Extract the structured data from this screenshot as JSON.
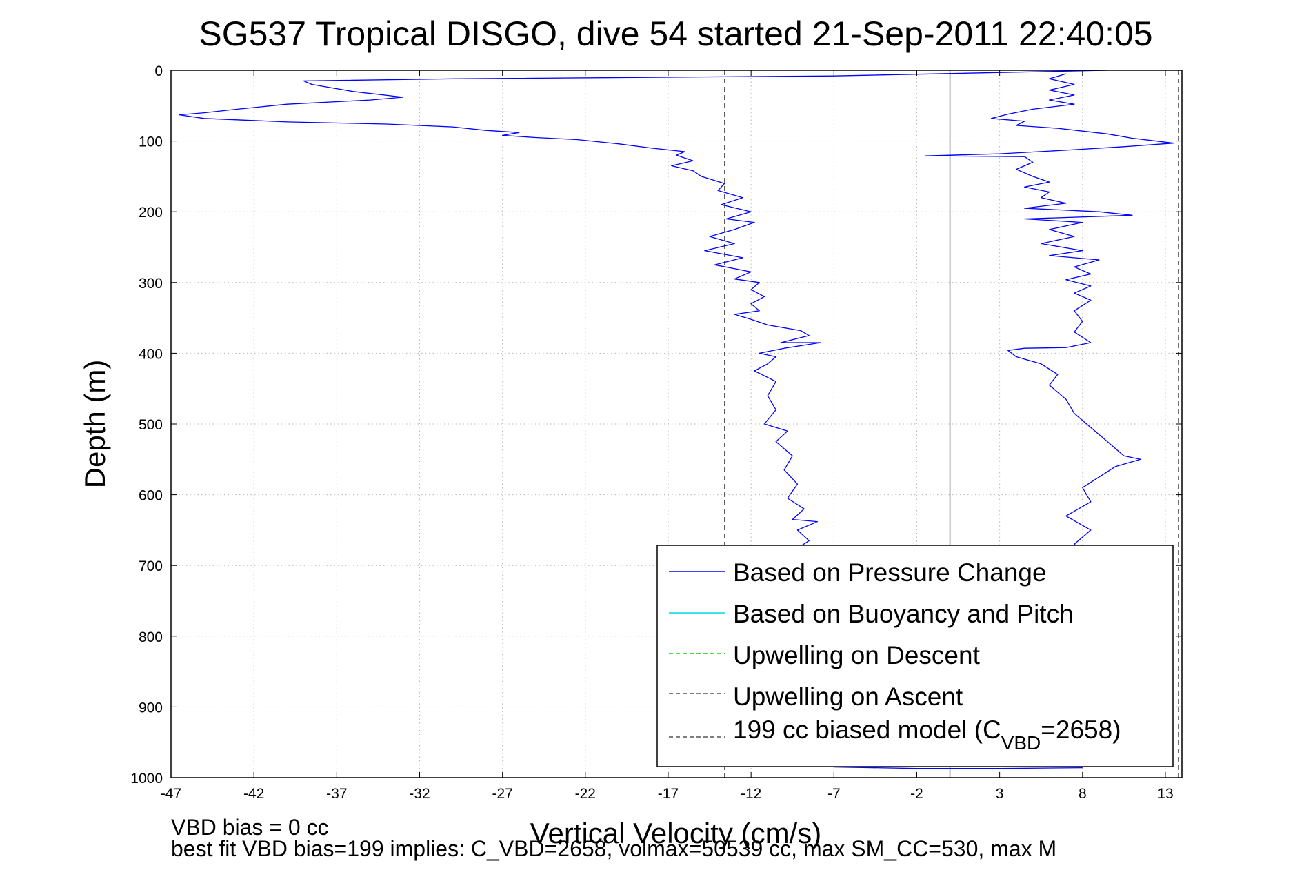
{
  "title": "SG537 Tropical DISGO, dive 54 started 21-Sep-2011 22:40:05",
  "xlabel": "Vertical Velocity (cm/s)",
  "ylabel": "Depth (m)",
  "footer": {
    "line1": "VBD bias = 0 cc",
    "line2": "best fit VBD bias=199 implies: C_VBD=2658, volmax=50539 cc, max SM_CC=530, max M"
  },
  "legend": {
    "items": [
      {
        "label": "Based on Pressure Change",
        "color": "#0000ff",
        "dash": "solid"
      },
      {
        "label": "Based on Buoyancy and Pitch",
        "color": "#00d8e8",
        "dash": "solid"
      },
      {
        "label": "Upwelling on Descent",
        "color": "#00dd00",
        "dash": "dashed"
      },
      {
        "label": "Upwelling on Ascent",
        "color": "#555555",
        "dash": "dashed"
      },
      {
        "label_main": "199 cc biased model (C",
        "label_sub": "VBD",
        "label_end": "=2658)",
        "color": "#555555",
        "dash": "dashed"
      }
    ]
  },
  "chart_data": {
    "type": "line",
    "title": "SG537 Tropical DISGO, dive 54 started 21-Sep-2011 22:40:05",
    "xlabel": "Vertical Velocity (cm/s)",
    "ylabel": "Depth (m)",
    "xlim": [
      -47,
      14
    ],
    "ylim": [
      1000,
      0
    ],
    "y_reversed": true,
    "grid": true,
    "legend_position": "bottom-right",
    "x_ticks": [
      -47,
      -42,
      -37,
      -32,
      -27,
      -22,
      -17,
      -12,
      -7,
      -2,
      3,
      8,
      13
    ],
    "x_tick_labels": [
      "-47",
      "-42",
      "-37",
      "-32",
      "-27",
      "-22",
      "-17",
      "-12",
      "-7",
      "-2",
      "3",
      "8",
      "13"
    ],
    "y_ticks": [
      0,
      100,
      200,
      300,
      400,
      500,
      600,
      700,
      800,
      900,
      1000
    ],
    "y_tick_labels": [
      "0",
      "100",
      "200",
      "300",
      "400",
      "500",
      "600",
      "700",
      "800",
      "900",
      "1000"
    ],
    "vertical_lines": [
      {
        "x": 0,
        "style": "solid",
        "color": "#000000"
      },
      {
        "x": -13.6,
        "style": "dashed",
        "color": "#555555"
      },
      {
        "x": 13.8,
        "style": "dashed",
        "color": "#555555"
      }
    ],
    "series": [
      {
        "name": "Based on Pressure Change",
        "color": "#0000ff",
        "segment": "descent",
        "points": [
          [
            9.5,
            0
          ],
          [
            -7,
            8
          ],
          [
            -30,
            12
          ],
          [
            -39,
            15
          ],
          [
            -38.5,
            20
          ],
          [
            -36,
            30
          ],
          [
            -33,
            38
          ],
          [
            -35,
            42
          ],
          [
            -40,
            48
          ],
          [
            -43,
            55
          ],
          [
            -45,
            60
          ],
          [
            -46.5,
            63
          ],
          [
            -45,
            68
          ],
          [
            -40,
            73
          ],
          [
            -34,
            76
          ],
          [
            -30,
            80
          ],
          [
            -28,
            85
          ],
          [
            -26,
            88
          ],
          [
            -27,
            92
          ],
          [
            -25,
            95
          ],
          [
            -22.5,
            98
          ],
          [
            -20,
            104
          ],
          [
            -18,
            110
          ],
          [
            -16,
            115
          ],
          [
            -16.5,
            120
          ],
          [
            -15.5,
            128
          ],
          [
            -16.8,
            135
          ],
          [
            -15.5,
            142
          ],
          [
            -15,
            150
          ],
          [
            -13.6,
            160
          ],
          [
            -14,
            170
          ],
          [
            -12.5,
            180
          ],
          [
            -13.8,
            190
          ],
          [
            -12,
            200
          ],
          [
            -13.5,
            210
          ],
          [
            -11.8,
            215
          ],
          [
            -13,
            225
          ],
          [
            -14.5,
            235
          ],
          [
            -13,
            245
          ],
          [
            -14.8,
            255
          ],
          [
            -12.5,
            265
          ],
          [
            -14.2,
            275
          ],
          [
            -12,
            285
          ],
          [
            -13,
            295
          ],
          [
            -11.5,
            300
          ],
          [
            -12,
            310
          ],
          [
            -11.2,
            320
          ],
          [
            -12,
            330
          ],
          [
            -11.5,
            340
          ],
          [
            -13,
            345
          ],
          [
            -12,
            352
          ],
          [
            -11,
            360
          ],
          [
            -9,
            368
          ],
          [
            -8.5,
            375
          ],
          [
            -10.2,
            385
          ],
          [
            -7.8,
            385
          ],
          [
            -10,
            393
          ],
          [
            -11.5,
            400
          ],
          [
            -10.5,
            405
          ],
          [
            -11,
            415
          ],
          [
            -11.8,
            425
          ],
          [
            -10.5,
            440
          ],
          [
            -11,
            460
          ],
          [
            -10.5,
            480
          ],
          [
            -11.2,
            500
          ],
          [
            -9.8,
            510
          ],
          [
            -10.5,
            525
          ],
          [
            -9.5,
            545
          ],
          [
            -10,
            565
          ],
          [
            -9.2,
            585
          ],
          [
            -9.8,
            605
          ],
          [
            -8.8,
            620
          ],
          [
            -9.5,
            635
          ],
          [
            -8,
            638
          ],
          [
            -9.2,
            650
          ],
          [
            -8.5,
            665
          ],
          [
            -9.5,
            680
          ]
        ]
      },
      {
        "name": "Based on Pressure Change",
        "color": "#0000ff",
        "segment": "ascent",
        "points": [
          [
            7,
            5
          ],
          [
            6,
            12
          ],
          [
            7.5,
            20
          ],
          [
            6,
            28
          ],
          [
            7.5,
            35
          ],
          [
            6,
            42
          ],
          [
            7.5,
            48
          ],
          [
            5,
            55
          ],
          [
            3.5,
            62
          ],
          [
            2.5,
            68
          ],
          [
            4.5,
            72
          ],
          [
            4,
            78
          ],
          [
            6.5,
            82
          ],
          [
            8,
            86
          ],
          [
            9.5,
            90
          ],
          [
            11,
            96
          ],
          [
            13.5,
            103
          ],
          [
            10.5,
            108
          ],
          [
            7,
            113
          ],
          [
            3,
            118
          ],
          [
            0,
            120
          ],
          [
            -1.5,
            121
          ],
          [
            4.5,
            122
          ],
          [
            5,
            130
          ],
          [
            4,
            140
          ],
          [
            5,
            150
          ],
          [
            6,
            158
          ],
          [
            4.5,
            165
          ],
          [
            6,
            172
          ],
          [
            5.5,
            180
          ],
          [
            7,
            188
          ],
          [
            4.5,
            195
          ],
          [
            9,
            200
          ],
          [
            11,
            205
          ],
          [
            4.5,
            210
          ],
          [
            8,
            215
          ],
          [
            6,
            225
          ],
          [
            7.5,
            235
          ],
          [
            5.5,
            245
          ],
          [
            8,
            255
          ],
          [
            6,
            262
          ],
          [
            9,
            268
          ],
          [
            7.5,
            278
          ],
          [
            8.5,
            288
          ],
          [
            7,
            296
          ],
          [
            8.5,
            305
          ],
          [
            7.5,
            315
          ],
          [
            8.5,
            325
          ],
          [
            7.5,
            340
          ],
          [
            8,
            355
          ],
          [
            7.5,
            370
          ],
          [
            8.5,
            385
          ],
          [
            7,
            392
          ],
          [
            4.5,
            393
          ],
          [
            3.5,
            396
          ],
          [
            4,
            405
          ],
          [
            5.5,
            415
          ],
          [
            6.5,
            430
          ],
          [
            6,
            445
          ],
          [
            7,
            465
          ],
          [
            7.5,
            485
          ],
          [
            8.5,
            505
          ],
          [
            9.5,
            525
          ],
          [
            10.5,
            545
          ],
          [
            11.5,
            550
          ],
          [
            10,
            560
          ],
          [
            9,
            575
          ],
          [
            8,
            590
          ],
          [
            8.5,
            610
          ],
          [
            7,
            630
          ],
          [
            8.5,
            650
          ],
          [
            7.5,
            670
          ],
          [
            8.5,
            685
          ]
        ]
      },
      {
        "name": "Based on Pressure Change",
        "color": "#0000ff",
        "segment": "bottom",
        "points": [
          [
            -7,
            985
          ],
          [
            -2,
            987
          ],
          [
            3,
            987
          ],
          [
            8,
            986
          ]
        ]
      }
    ]
  }
}
